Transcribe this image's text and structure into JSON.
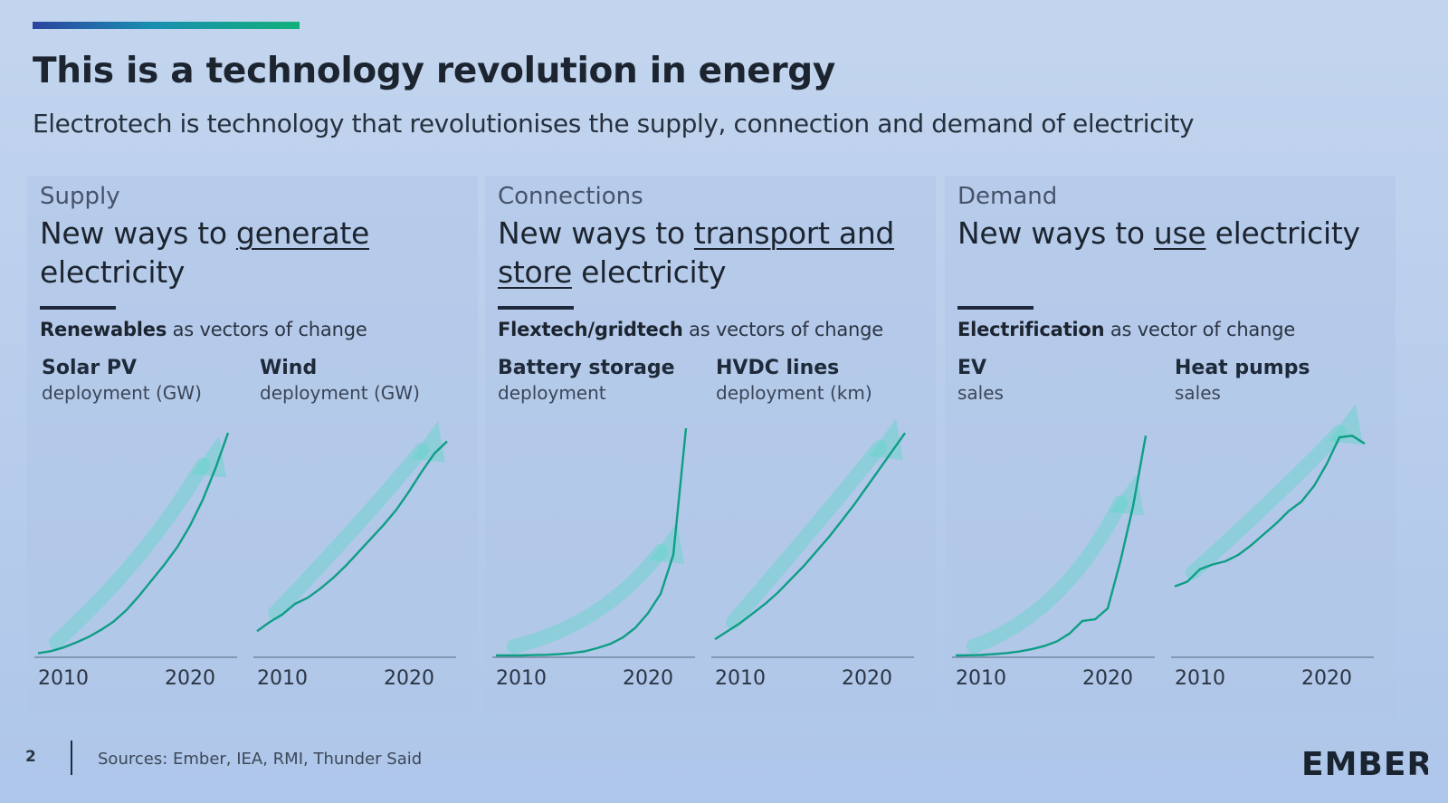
{
  "header": {
    "title": "This is a technology revolution in energy",
    "subtitle": "Electrotech is technology that revolutionises the supply, connection and demand of electricity"
  },
  "panels": [
    {
      "label": "Supply",
      "heading_pre": "New ways to ",
      "heading_u": "generate",
      "heading_post": " electricity",
      "caption_bold": "Renewables",
      "caption_rest": " as vectors of change"
    },
    {
      "label": "Connections",
      "heading_pre": "New ways to ",
      "heading_u": "transport and store",
      "heading_post": " electricity",
      "caption_bold": "Flextech/gridtech",
      "caption_rest": " as vectors of change"
    },
    {
      "label": "Demand",
      "heading_pre": "New ways to ",
      "heading_u": "use",
      "heading_post": " electricity",
      "caption_bold": "Electrification",
      "caption_rest": " as vector of change"
    }
  ],
  "chart_data": [
    {
      "type": "line",
      "title": "Solar PV",
      "ylabel": "deployment (GW)",
      "x": [
        2008,
        2009,
        2010,
        2011,
        2012,
        2013,
        2014,
        2015,
        2016,
        2017,
        2018,
        2019,
        2020,
        2021,
        2022,
        2023
      ],
      "values": [
        3,
        6,
        11,
        18,
        26,
        36,
        48,
        64,
        84,
        106,
        128,
        152,
        182,
        218,
        262,
        312
      ],
      "xticks": [
        2010,
        2020
      ],
      "ylim": [
        0,
        330
      ],
      "series_color": "#0e9e85"
    },
    {
      "type": "line",
      "title": "Wind",
      "ylabel": "deployment (GW)",
      "x": [
        2008,
        2009,
        2010,
        2011,
        2012,
        2013,
        2014,
        2015,
        2016,
        2017,
        2018,
        2019,
        2020,
        2021,
        2022,
        2023
      ],
      "values": [
        16,
        22,
        27,
        34,
        38,
        44,
        51,
        59,
        68,
        77,
        86,
        96,
        108,
        121,
        133,
        141
      ],
      "xticks": [
        2010,
        2020
      ],
      "ylim": [
        0,
        155
      ],
      "series_color": "#0e9e85"
    },
    {
      "type": "line",
      "title": "Battery storage",
      "ylabel": "deployment",
      "x": [
        2008,
        2009,
        2010,
        2011,
        2012,
        2013,
        2014,
        2015,
        2016,
        2017,
        2018,
        2019,
        2020,
        2021,
        2022,
        2023
      ],
      "values": [
        0,
        0,
        0,
        0.2,
        0.4,
        0.8,
        1.5,
        2.5,
        4.5,
        7,
        11,
        17,
        26,
        38,
        62,
        140
      ],
      "xticks": [
        2010,
        2020
      ],
      "ylim": [
        0,
        145
      ],
      "series_color": "#0e9e85"
    },
    {
      "type": "line",
      "title": "HVDC lines",
      "ylabel": "deployment (km)",
      "x": [
        2008,
        2009,
        2010,
        2011,
        2012,
        2013,
        2014,
        2015,
        2016,
        2017,
        2018,
        2019,
        2020,
        2021,
        2022,
        2023
      ],
      "values": [
        10,
        15,
        20,
        26,
        32,
        39,
        47,
        55,
        64,
        73,
        83,
        93,
        104,
        115,
        126,
        137
      ],
      "xticks": [
        2010,
        2020
      ],
      "ylim": [
        0,
        145
      ],
      "series_color": "#0e9e85"
    },
    {
      "type": "line",
      "title": "EV",
      "ylabel": "sales",
      "x": [
        2008,
        2009,
        2010,
        2011,
        2012,
        2013,
        2014,
        2015,
        2016,
        2017,
        2018,
        2019,
        2020,
        2021,
        2022,
        2023
      ],
      "values": [
        0,
        0.1,
        0.3,
        0.8,
        1.5,
        2.5,
        4,
        6,
        9,
        14,
        22,
        23,
        30,
        60,
        95,
        140
      ],
      "xticks": [
        2010,
        2020
      ],
      "ylim": [
        0,
        150
      ],
      "series_color": "#0e9e85"
    },
    {
      "type": "line",
      "title": "Heat pumps",
      "ylabel": "sales",
      "x": [
        2008,
        2009,
        2010,
        2011,
        2012,
        2013,
        2014,
        2015,
        2016,
        2017,
        2018,
        2019,
        2020,
        2021,
        2022,
        2023
      ],
      "values": [
        44,
        47,
        55,
        58,
        60,
        64,
        70,
        77,
        84,
        92,
        98,
        108,
        122,
        139,
        140,
        135
      ],
      "xticks": [
        2010,
        2020
      ],
      "ylim": [
        0,
        150
      ],
      "series_color": "#0e9e85"
    }
  ],
  "footer": {
    "page_number": "2",
    "sources": "Sources: Ember, IEA, RMI, Thunder Said"
  },
  "logo": {
    "text": "EMBER",
    "accent": "#12b07a"
  }
}
